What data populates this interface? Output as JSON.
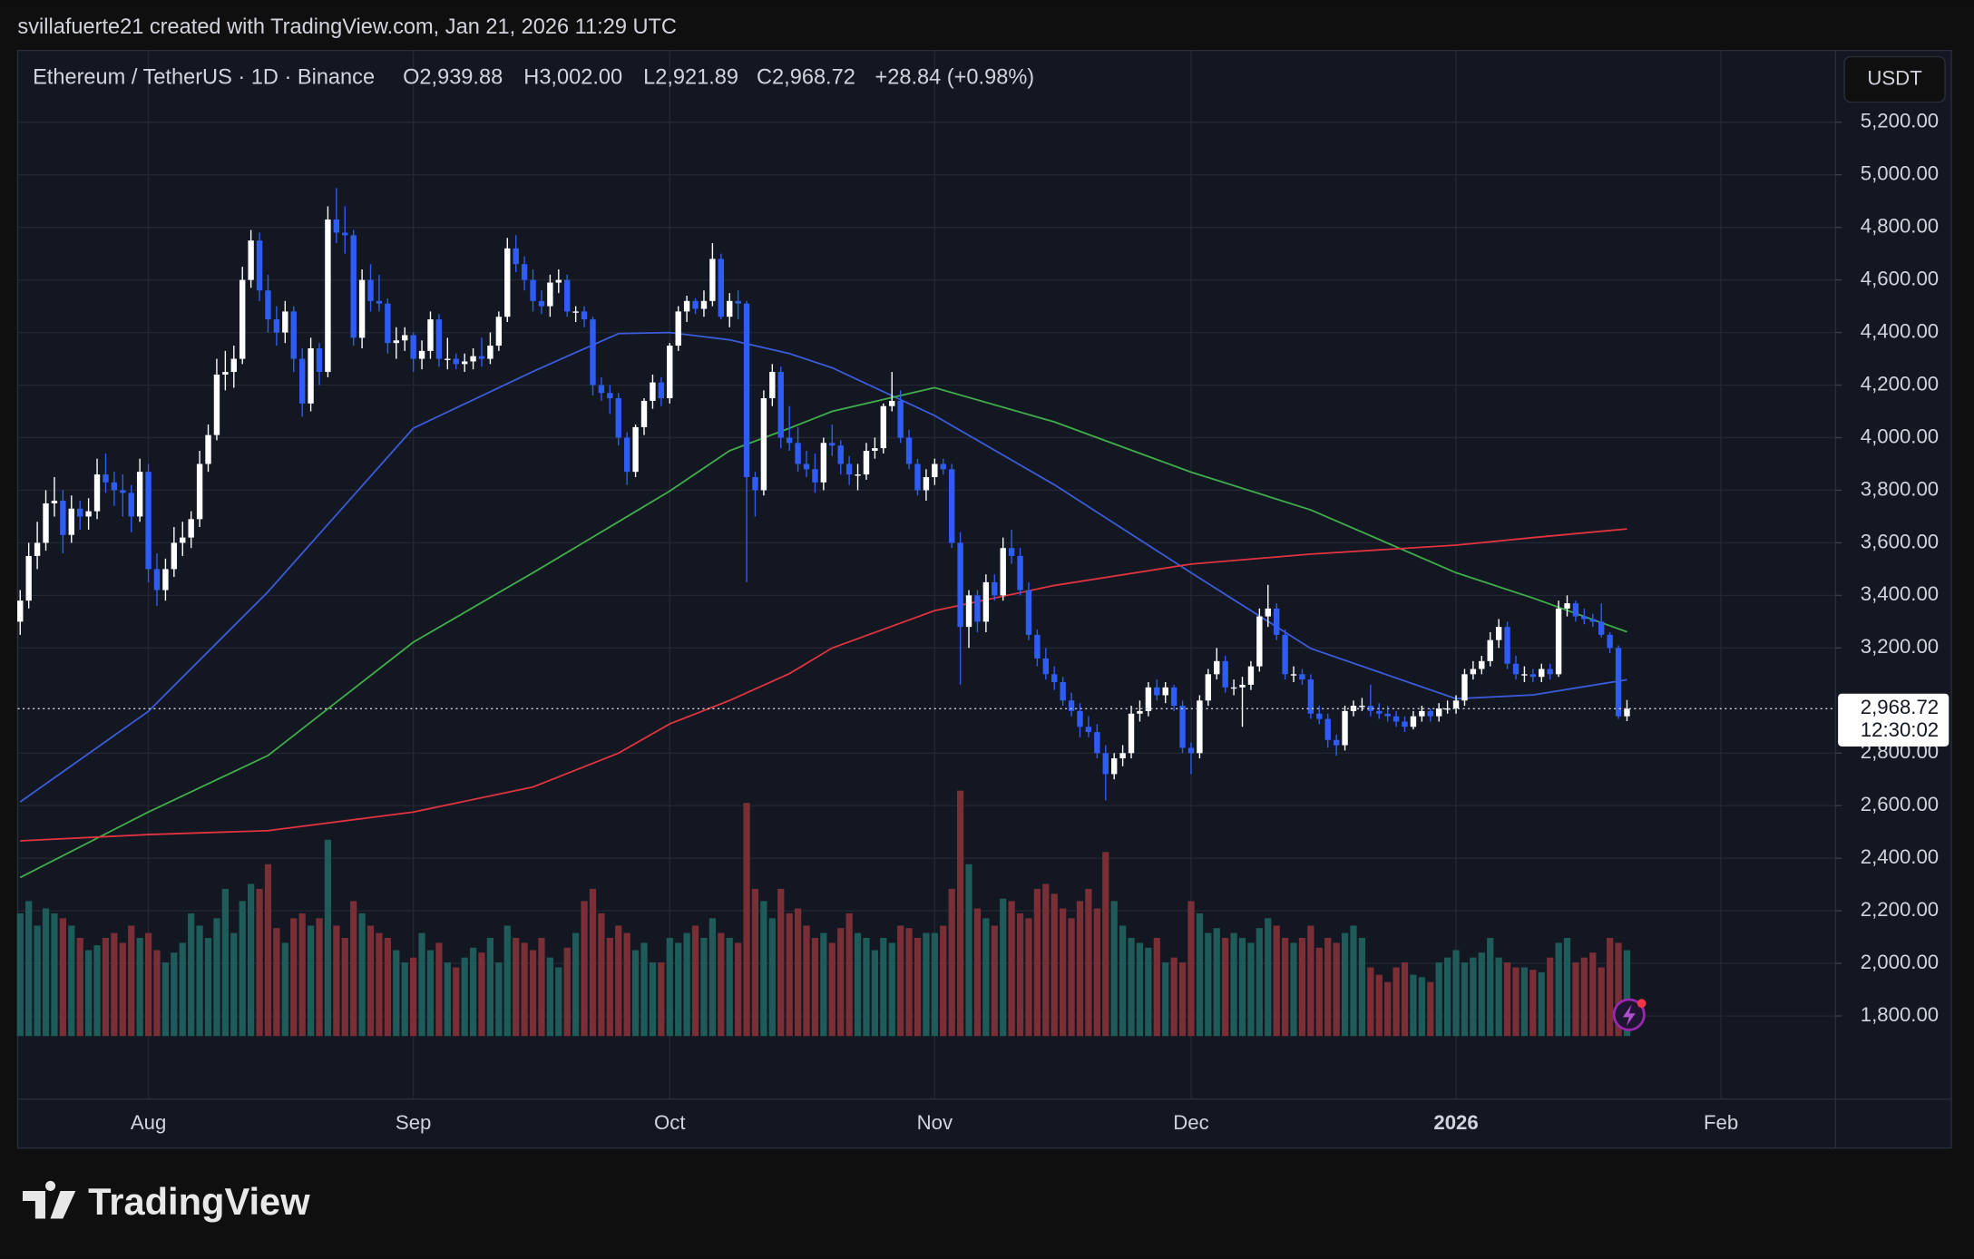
{
  "chart_data": {
    "type": "candlestick",
    "attribution": "svillafuerte21 created with TradingView.com, Jan 21, 2026 11:29 UTC",
    "title": "Ethereum / TetherUS · 1D · Binance",
    "legend": [
      "O2,939.88",
      "H3,002.00",
      "L2,921.89",
      "C2,968.72",
      "+28.84 (+0.98%)"
    ],
    "currency": "USDT",
    "last_price_label": "2,968.72",
    "countdown": "12:30:02",
    "brand": "TradingView",
    "up_color": "#ffffff",
    "down_color": "#2f5cf5",
    "volume_up_color": "#1f5c59",
    "volume_down_color": "#7a2f36",
    "grid": true,
    "xlim": [
      -0.3,
      212.4
    ],
    "xticks": [
      {
        "value": 15,
        "label": "Aug"
      },
      {
        "value": 46,
        "label": "Sep"
      },
      {
        "value": 76,
        "label": "Oct"
      },
      {
        "value": 107,
        "label": "Nov"
      },
      {
        "value": 137,
        "label": "Dec"
      },
      {
        "value": 168,
        "label": "2026"
      },
      {
        "value": 199,
        "label": "Feb"
      }
    ],
    "ylim": [
      1484,
      5473
    ],
    "yticks": [
      {
        "value": 5200,
        "label": "5,200.00"
      },
      {
        "value": 5000,
        "label": "5,000.00"
      },
      {
        "value": 4800,
        "label": "4,800.00"
      },
      {
        "value": 4600,
        "label": "4,600.00"
      },
      {
        "value": 4400,
        "label": "4,400.00"
      },
      {
        "value": 4200,
        "label": "4,200.00"
      },
      {
        "value": 4000,
        "label": "4,000.00"
      },
      {
        "value": 3800,
        "label": "3,800.00"
      },
      {
        "value": 3600,
        "label": "3,600.00"
      },
      {
        "value": 3400,
        "label": "3,400.00"
      },
      {
        "value": 3200,
        "label": "3,200.00"
      },
      {
        "value": 2800,
        "label": "2,800.00"
      },
      {
        "value": 2600,
        "label": "2,600.00"
      },
      {
        "value": 2400,
        "label": "2,400.00"
      },
      {
        "value": 2200,
        "label": "2,200.00"
      },
      {
        "value": 2000,
        "label": "2,000.00"
      },
      {
        "value": 1800,
        "label": "1,800.00"
      }
    ],
    "ma": [
      {
        "color": "#3b5bdb",
        "x": [
          0,
          15,
          29,
          46,
          60,
          70,
          76,
          83,
          90,
          95,
          107,
          121,
          137,
          151,
          168,
          177,
          188
        ],
        "values": [
          2614,
          2959,
          3414,
          4036,
          4252,
          4396,
          4400,
          4372,
          4320,
          4266,
          4084,
          3821,
          3486,
          3198,
          3007,
          3021,
          3079
        ]
      },
      {
        "color": "#3fae49",
        "x": [
          0,
          15,
          29,
          46,
          60,
          70,
          76,
          83,
          90,
          95,
          107,
          121,
          137,
          151,
          168,
          177,
          188
        ],
        "values": [
          2327,
          2576,
          2791,
          3222,
          3486,
          3680,
          3797,
          3950,
          4036,
          4100,
          4190,
          4060,
          3869,
          3725,
          3486,
          3390,
          3261
        ]
      },
      {
        "color": "#e0333f",
        "x": [
          0,
          15,
          29,
          46,
          60,
          70,
          76,
          83,
          90,
          95,
          107,
          121,
          137,
          151,
          168,
          177,
          188
        ],
        "values": [
          2466,
          2490,
          2505,
          2576,
          2671,
          2800,
          2911,
          3000,
          3102,
          3200,
          3342,
          3438,
          3519,
          3557,
          3591,
          3620,
          3653
        ]
      }
    ],
    "ohlc": [
      [
        3300,
        3420,
        3250,
        3380
      ],
      [
        3380,
        3600,
        3350,
        3550
      ],
      [
        3550,
        3680,
        3500,
        3600
      ],
      [
        3600,
        3800,
        3570,
        3750
      ],
      [
        3750,
        3850,
        3700,
        3760
      ],
      [
        3760,
        3800,
        3560,
        3630
      ],
      [
        3630,
        3780,
        3600,
        3730
      ],
      [
        3730,
        3760,
        3650,
        3700
      ],
      [
        3700,
        3770,
        3650,
        3720
      ],
      [
        3720,
        3920,
        3690,
        3860
      ],
      [
        3860,
        3940,
        3790,
        3830
      ],
      [
        3830,
        3870,
        3740,
        3800
      ],
      [
        3800,
        3860,
        3700,
        3790
      ],
      [
        3790,
        3820,
        3640,
        3700
      ],
      [
        3700,
        3920,
        3680,
        3870
      ],
      [
        3870,
        3900,
        3450,
        3500
      ],
      [
        3500,
        3560,
        3360,
        3420
      ],
      [
        3420,
        3540,
        3380,
        3500
      ],
      [
        3500,
        3660,
        3470,
        3600
      ],
      [
        3600,
        3680,
        3550,
        3620
      ],
      [
        3620,
        3720,
        3580,
        3690
      ],
      [
        3690,
        3950,
        3660,
        3900
      ],
      [
        3900,
        4050,
        3870,
        4010
      ],
      [
        4010,
        4300,
        3990,
        4240
      ],
      [
        4240,
        4330,
        4180,
        4250
      ],
      [
        4250,
        4350,
        4190,
        4300
      ],
      [
        4300,
        4650,
        4280,
        4600
      ],
      [
        4600,
        4790,
        4570,
        4750
      ],
      [
        4750,
        4780,
        4520,
        4560
      ],
      [
        4560,
        4620,
        4400,
        4450
      ],
      [
        4450,
        4500,
        4350,
        4400
      ],
      [
        4400,
        4520,
        4360,
        4480
      ],
      [
        4480,
        4500,
        4250,
        4300
      ],
      [
        4300,
        4340,
        4080,
        4130
      ],
      [
        4130,
        4380,
        4100,
        4340
      ],
      [
        4340,
        4360,
        4200,
        4250
      ],
      [
        4250,
        4880,
        4230,
        4830
      ],
      [
        4830,
        4950,
        4740,
        4780
      ],
      [
        4780,
        4880,
        4700,
        4770
      ],
      [
        4770,
        4790,
        4350,
        4380
      ],
      [
        4380,
        4640,
        4340,
        4600
      ],
      [
        4600,
        4660,
        4480,
        4520
      ],
      [
        4520,
        4620,
        4480,
        4510
      ],
      [
        4510,
        4530,
        4320,
        4360
      ],
      [
        4360,
        4420,
        4300,
        4370
      ],
      [
        4370,
        4420,
        4330,
        4390
      ],
      [
        4390,
        4400,
        4250,
        4300
      ],
      [
        4300,
        4370,
        4260,
        4330
      ],
      [
        4330,
        4480,
        4300,
        4450
      ],
      [
        4450,
        4470,
        4270,
        4300
      ],
      [
        4300,
        4380,
        4260,
        4300
      ],
      [
        4300,
        4320,
        4260,
        4280
      ],
      [
        4280,
        4320,
        4250,
        4290
      ],
      [
        4290,
        4340,
        4260,
        4310
      ],
      [
        4310,
        4380,
        4270,
        4300
      ],
      [
        4300,
        4400,
        4280,
        4350
      ],
      [
        4350,
        4480,
        4330,
        4460
      ],
      [
        4460,
        4760,
        4440,
        4720
      ],
      [
        4720,
        4770,
        4630,
        4660
      ],
      [
        4660,
        4690,
        4560,
        4600
      ],
      [
        4600,
        4640,
        4480,
        4520
      ],
      [
        4520,
        4560,
        4470,
        4500
      ],
      [
        4500,
        4620,
        4460,
        4590
      ],
      [
        4590,
        4640,
        4550,
        4600
      ],
      [
        4600,
        4620,
        4460,
        4480
      ],
      [
        4480,
        4500,
        4440,
        4480
      ],
      [
        4480,
        4500,
        4420,
        4450
      ],
      [
        4450,
        4460,
        4160,
        4200
      ],
      [
        4200,
        4230,
        4140,
        4170
      ],
      [
        4170,
        4200,
        4090,
        4150
      ],
      [
        4150,
        4170,
        3970,
        4000
      ],
      [
        4000,
        4020,
        3820,
        3870
      ],
      [
        3870,
        4050,
        3850,
        4040
      ],
      [
        4040,
        4150,
        4010,
        4140
      ],
      [
        4140,
        4240,
        4110,
        4210
      ],
      [
        4210,
        4230,
        4120,
        4150
      ],
      [
        4150,
        4360,
        4130,
        4350
      ],
      [
        4350,
        4500,
        4330,
        4480
      ],
      [
        4480,
        4540,
        4440,
        4520
      ],
      [
        4520,
        4530,
        4470,
        4490
      ],
      [
        4490,
        4560,
        4460,
        4520
      ],
      [
        4520,
        4740,
        4500,
        4680
      ],
      [
        4680,
        4700,
        4450,
        4460
      ],
      [
        4460,
        4550,
        4420,
        4520
      ],
      [
        4520,
        4560,
        4450,
        4510
      ],
      [
        4510,
        4520,
        3450,
        3850
      ],
      [
        3850,
        3870,
        3700,
        3800
      ],
      [
        3800,
        4180,
        3780,
        4150
      ],
      [
        4150,
        4280,
        4120,
        4250
      ],
      [
        4250,
        4270,
        3960,
        4000
      ],
      [
        4000,
        4120,
        3950,
        3980
      ],
      [
        3980,
        4040,
        3870,
        3900
      ],
      [
        3900,
        3950,
        3850,
        3880
      ],
      [
        3880,
        3940,
        3790,
        3830
      ],
      [
        3830,
        4000,
        3800,
        3980
      ],
      [
        3980,
        4050,
        3930,
        3970
      ],
      [
        3970,
        3990,
        3860,
        3900
      ],
      [
        3900,
        3930,
        3820,
        3860
      ],
      [
        3860,
        3900,
        3800,
        3860
      ],
      [
        3860,
        3980,
        3840,
        3950
      ],
      [
        3950,
        4000,
        3920,
        3960
      ],
      [
        3960,
        4130,
        3940,
        4120
      ],
      [
        4120,
        4250,
        4100,
        4140
      ],
      [
        4140,
        4180,
        3980,
        4000
      ],
      [
        4000,
        4030,
        3880,
        3900
      ],
      [
        3900,
        3920,
        3780,
        3800
      ],
      [
        3800,
        3880,
        3760,
        3850
      ],
      [
        3850,
        3920,
        3820,
        3900
      ],
      [
        3900,
        3920,
        3860,
        3880
      ],
      [
        3880,
        3900,
        3580,
        3600
      ],
      [
        3600,
        3640,
        3060,
        3280
      ],
      [
        3280,
        3420,
        3200,
        3400
      ],
      [
        3400,
        3420,
        3260,
        3300
      ],
      [
        3300,
        3480,
        3260,
        3450
      ],
      [
        3450,
        3480,
        3380,
        3400
      ],
      [
        3400,
        3620,
        3380,
        3580
      ],
      [
        3580,
        3650,
        3520,
        3550
      ],
      [
        3550,
        3580,
        3400,
        3420
      ],
      [
        3420,
        3450,
        3230,
        3250
      ],
      [
        3250,
        3270,
        3130,
        3160
      ],
      [
        3160,
        3200,
        3080,
        3100
      ],
      [
        3100,
        3130,
        3040,
        3070
      ],
      [
        3070,
        3090,
        2980,
        3000
      ],
      [
        3000,
        3030,
        2940,
        2960
      ],
      [
        2960,
        2990,
        2860,
        2900
      ],
      [
        2900,
        2940,
        2860,
        2880
      ],
      [
        2880,
        2910,
        2780,
        2800
      ],
      [
        2800,
        2830,
        2620,
        2720
      ],
      [
        2720,
        2800,
        2700,
        2780
      ],
      [
        2780,
        2830,
        2750,
        2800
      ],
      [
        2800,
        2980,
        2780,
        2950
      ],
      [
        2950,
        3000,
        2920,
        2960
      ],
      [
        2960,
        3070,
        2940,
        3050
      ],
      [
        3050,
        3080,
        3000,
        3020
      ],
      [
        3020,
        3070,
        2990,
        3050
      ],
      [
        3050,
        3060,
        2960,
        2980
      ],
      [
        2980,
        3000,
        2800,
        2820
      ],
      [
        2820,
        2840,
        2720,
        2800
      ],
      [
        2800,
        3020,
        2780,
        3000
      ],
      [
        3000,
        3120,
        2980,
        3100
      ],
      [
        3100,
        3200,
        3080,
        3150
      ],
      [
        3150,
        3170,
        3030,
        3050
      ],
      [
        3050,
        3080,
        3020,
        3050
      ],
      [
        3050,
        3090,
        2900,
        3060
      ],
      [
        3060,
        3150,
        3040,
        3130
      ],
      [
        3130,
        3350,
        3110,
        3320
      ],
      [
        3320,
        3440,
        3280,
        3350
      ],
      [
        3350,
        3370,
        3230,
        3250
      ],
      [
        3250,
        3270,
        3080,
        3100
      ],
      [
        3100,
        3130,
        3070,
        3100
      ],
      [
        3100,
        3120,
        3060,
        3080
      ],
      [
        3080,
        3100,
        2930,
        2950
      ],
      [
        2950,
        2980,
        2910,
        2930
      ],
      [
        2930,
        2950,
        2820,
        2850
      ],
      [
        2850,
        2870,
        2790,
        2830
      ],
      [
        2830,
        2980,
        2810,
        2960
      ],
      [
        2960,
        3000,
        2940,
        2980
      ],
      [
        2980,
        3010,
        2960,
        2980
      ],
      [
        2980,
        3060,
        2940,
        2960
      ],
      [
        2960,
        2990,
        2930,
        2950
      ],
      [
        2950,
        2980,
        2920,
        2940
      ],
      [
        2940,
        2960,
        2900,
        2920
      ],
      [
        2920,
        2940,
        2880,
        2900
      ],
      [
        2900,
        2960,
        2890,
        2940
      ],
      [
        2940,
        2980,
        2920,
        2960
      ],
      [
        2960,
        2970,
        2920,
        2940
      ],
      [
        2940,
        2990,
        2920,
        2970
      ],
      [
        2970,
        3000,
        2950,
        2970
      ],
      [
        2970,
        3020,
        2950,
        3000
      ],
      [
        3000,
        3120,
        2980,
        3100
      ],
      [
        3100,
        3150,
        3080,
        3120
      ],
      [
        3120,
        3170,
        3100,
        3150
      ],
      [
        3150,
        3260,
        3130,
        3230
      ],
      [
        3230,
        3310,
        3200,
        3280
      ],
      [
        3280,
        3300,
        3120,
        3140
      ],
      [
        3140,
        3170,
        3080,
        3100
      ],
      [
        3100,
        3130,
        3070,
        3100
      ],
      [
        3100,
        3120,
        3070,
        3090
      ],
      [
        3090,
        3140,
        3070,
        3120
      ],
      [
        3120,
        3140,
        3080,
        3100
      ],
      [
        3100,
        3380,
        3090,
        3350
      ],
      [
        3350,
        3400,
        3320,
        3370
      ],
      [
        3370,
        3380,
        3300,
        3320
      ],
      [
        3320,
        3350,
        3290,
        3310
      ],
      [
        3310,
        3330,
        3280,
        3300
      ],
      [
        3300,
        3370,
        3240,
        3250
      ],
      [
        3250,
        3260,
        3180,
        3200
      ],
      [
        3200,
        3210,
        2930,
        2940
      ],
      [
        2939.88,
        3002,
        2921.89,
        2968.72
      ]
    ],
    "volume": [
      50,
      55,
      45,
      52,
      50,
      48,
      45,
      40,
      35,
      37,
      40,
      42,
      38,
      45,
      40,
      42,
      35,
      30,
      34,
      38,
      50,
      45,
      40,
      48,
      60,
      42,
      55,
      62,
      60,
      70,
      44,
      38,
      48,
      50,
      45,
      48,
      80,
      45,
      40,
      55,
      50,
      45,
      42,
      40,
      35,
      30,
      32,
      42,
      35,
      38,
      30,
      28,
      32,
      36,
      34,
      40,
      30,
      45,
      40,
      38,
      35,
      40,
      32,
      28,
      36,
      42,
      55,
      60,
      50,
      40,
      45,
      42,
      35,
      38,
      30,
      30,
      40,
      38,
      42,
      45,
      40,
      48,
      42,
      40,
      38,
      95,
      60,
      55,
      48,
      60,
      50,
      52,
      45,
      40,
      42,
      38,
      44,
      50,
      42,
      40,
      35,
      40,
      38,
      45,
      44,
      40,
      42,
      42,
      45,
      60,
      100,
      70,
      52,
      48,
      45,
      56,
      55,
      50,
      48,
      60,
      62,
      58,
      52,
      48,
      55,
      60,
      52,
      75,
      55,
      45,
      40,
      38,
      36,
      40,
      30,
      32,
      30,
      55,
      50,
      42,
      44,
      40,
      42,
      40,
      38,
      44,
      48,
      45,
      40,
      38,
      40,
      45,
      36,
      40,
      38,
      42,
      45,
      40,
      28,
      25,
      22,
      28,
      30,
      25,
      24,
      22,
      30,
      32,
      35,
      30,
      32,
      34,
      40,
      32,
      30,
      28,
      28,
      27,
      26,
      32,
      38,
      40,
      30,
      32,
      34,
      28,
      40,
      38,
      35
    ]
  }
}
